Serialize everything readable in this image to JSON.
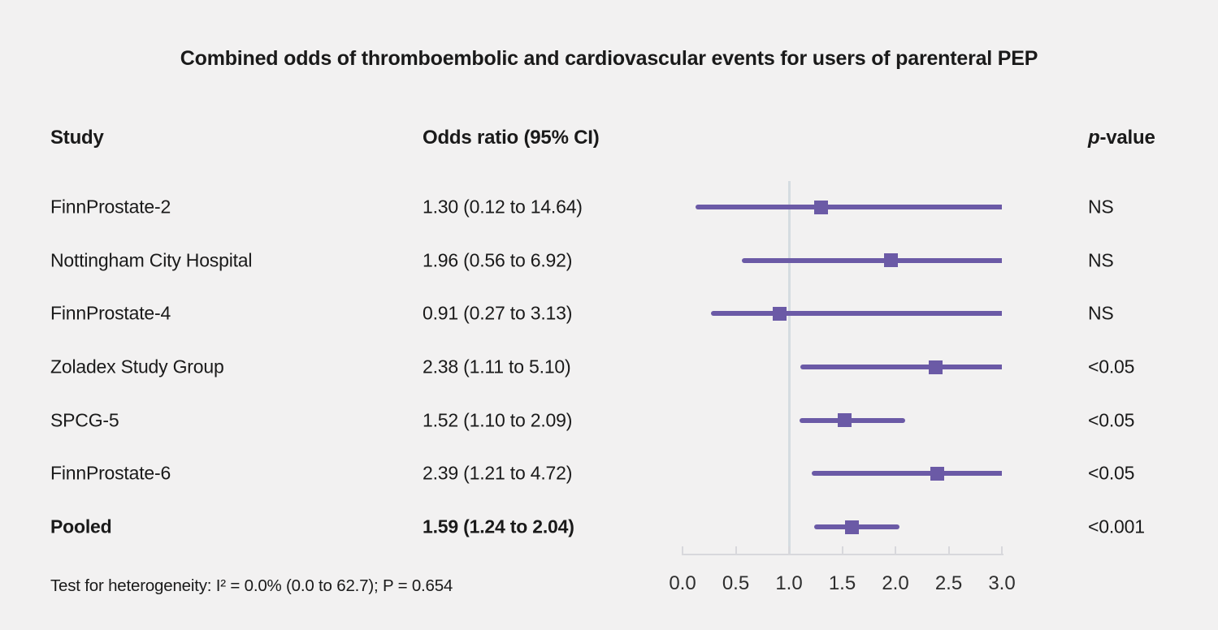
{
  "title": "Combined odds of thromboembolic and cardiovascular events for users of parenteral PEP",
  "columns": {
    "study": "Study",
    "odds_ratio": "Odds ratio (95% CI)",
    "p_prefix": "p",
    "p_suffix": "-value"
  },
  "footnote": "Test for heterogeneity: I² = 0.0% (0.0 to 62.7); P = 0.654",
  "colors": {
    "background": "#f2f1f1",
    "purple": "#6b5aa6",
    "reference_line": "#d5dce1",
    "axis": "#d8d8dc",
    "text": "#1a1a1a"
  },
  "chart_data": {
    "type": "forest",
    "title": "Combined odds of thromboembolic and cardiovascular events for users of parenteral PEP",
    "xlabel": "",
    "xlim": [
      0.0,
      3.0
    ],
    "x_ticks": [
      0.0,
      0.5,
      1.0,
      1.5,
      2.0,
      2.5,
      3.0
    ],
    "x_tick_labels": [
      "0.0",
      "0.5",
      "1.0",
      "1.5",
      "2.0",
      "2.5",
      "3.0"
    ],
    "reference_line": 1.0,
    "grid": false,
    "rows": [
      {
        "study": "FinnProstate-2",
        "or": 1.3,
        "ci_low": 0.12,
        "ci_high": 14.64,
        "or_label": "1.30 (0.12 to 14.64)",
        "p": "NS",
        "bold": false
      },
      {
        "study": "Nottingham City Hospital",
        "or": 1.96,
        "ci_low": 0.56,
        "ci_high": 6.92,
        "or_label": "1.96 (0.56 to 6.92)",
        "p": "NS",
        "bold": false
      },
      {
        "study": "FinnProstate-4",
        "or": 0.91,
        "ci_low": 0.27,
        "ci_high": 3.13,
        "or_label": "0.91 (0.27 to 3.13)",
        "p": "NS",
        "bold": false
      },
      {
        "study": "Zoladex Study Group",
        "or": 2.38,
        "ci_low": 1.11,
        "ci_high": 5.1,
        "or_label": "2.38 (1.11 to 5.10)",
        "p": "<0.05",
        "bold": false
      },
      {
        "study": "SPCG-5",
        "or": 1.52,
        "ci_low": 1.1,
        "ci_high": 2.09,
        "or_label": "1.52 (1.10 to 2.09)",
        "p": "<0.05",
        "bold": false
      },
      {
        "study": "FinnProstate-6",
        "or": 2.39,
        "ci_low": 1.21,
        "ci_high": 4.72,
        "or_label": "2.39 (1.21 to 4.72)",
        "p": "<0.05",
        "bold": false
      },
      {
        "study": "Pooled",
        "or": 1.59,
        "ci_low": 1.24,
        "ci_high": 2.04,
        "or_label": "1.59 (1.24 to 2.04)",
        "p": "<0.001",
        "bold": true
      }
    ]
  }
}
